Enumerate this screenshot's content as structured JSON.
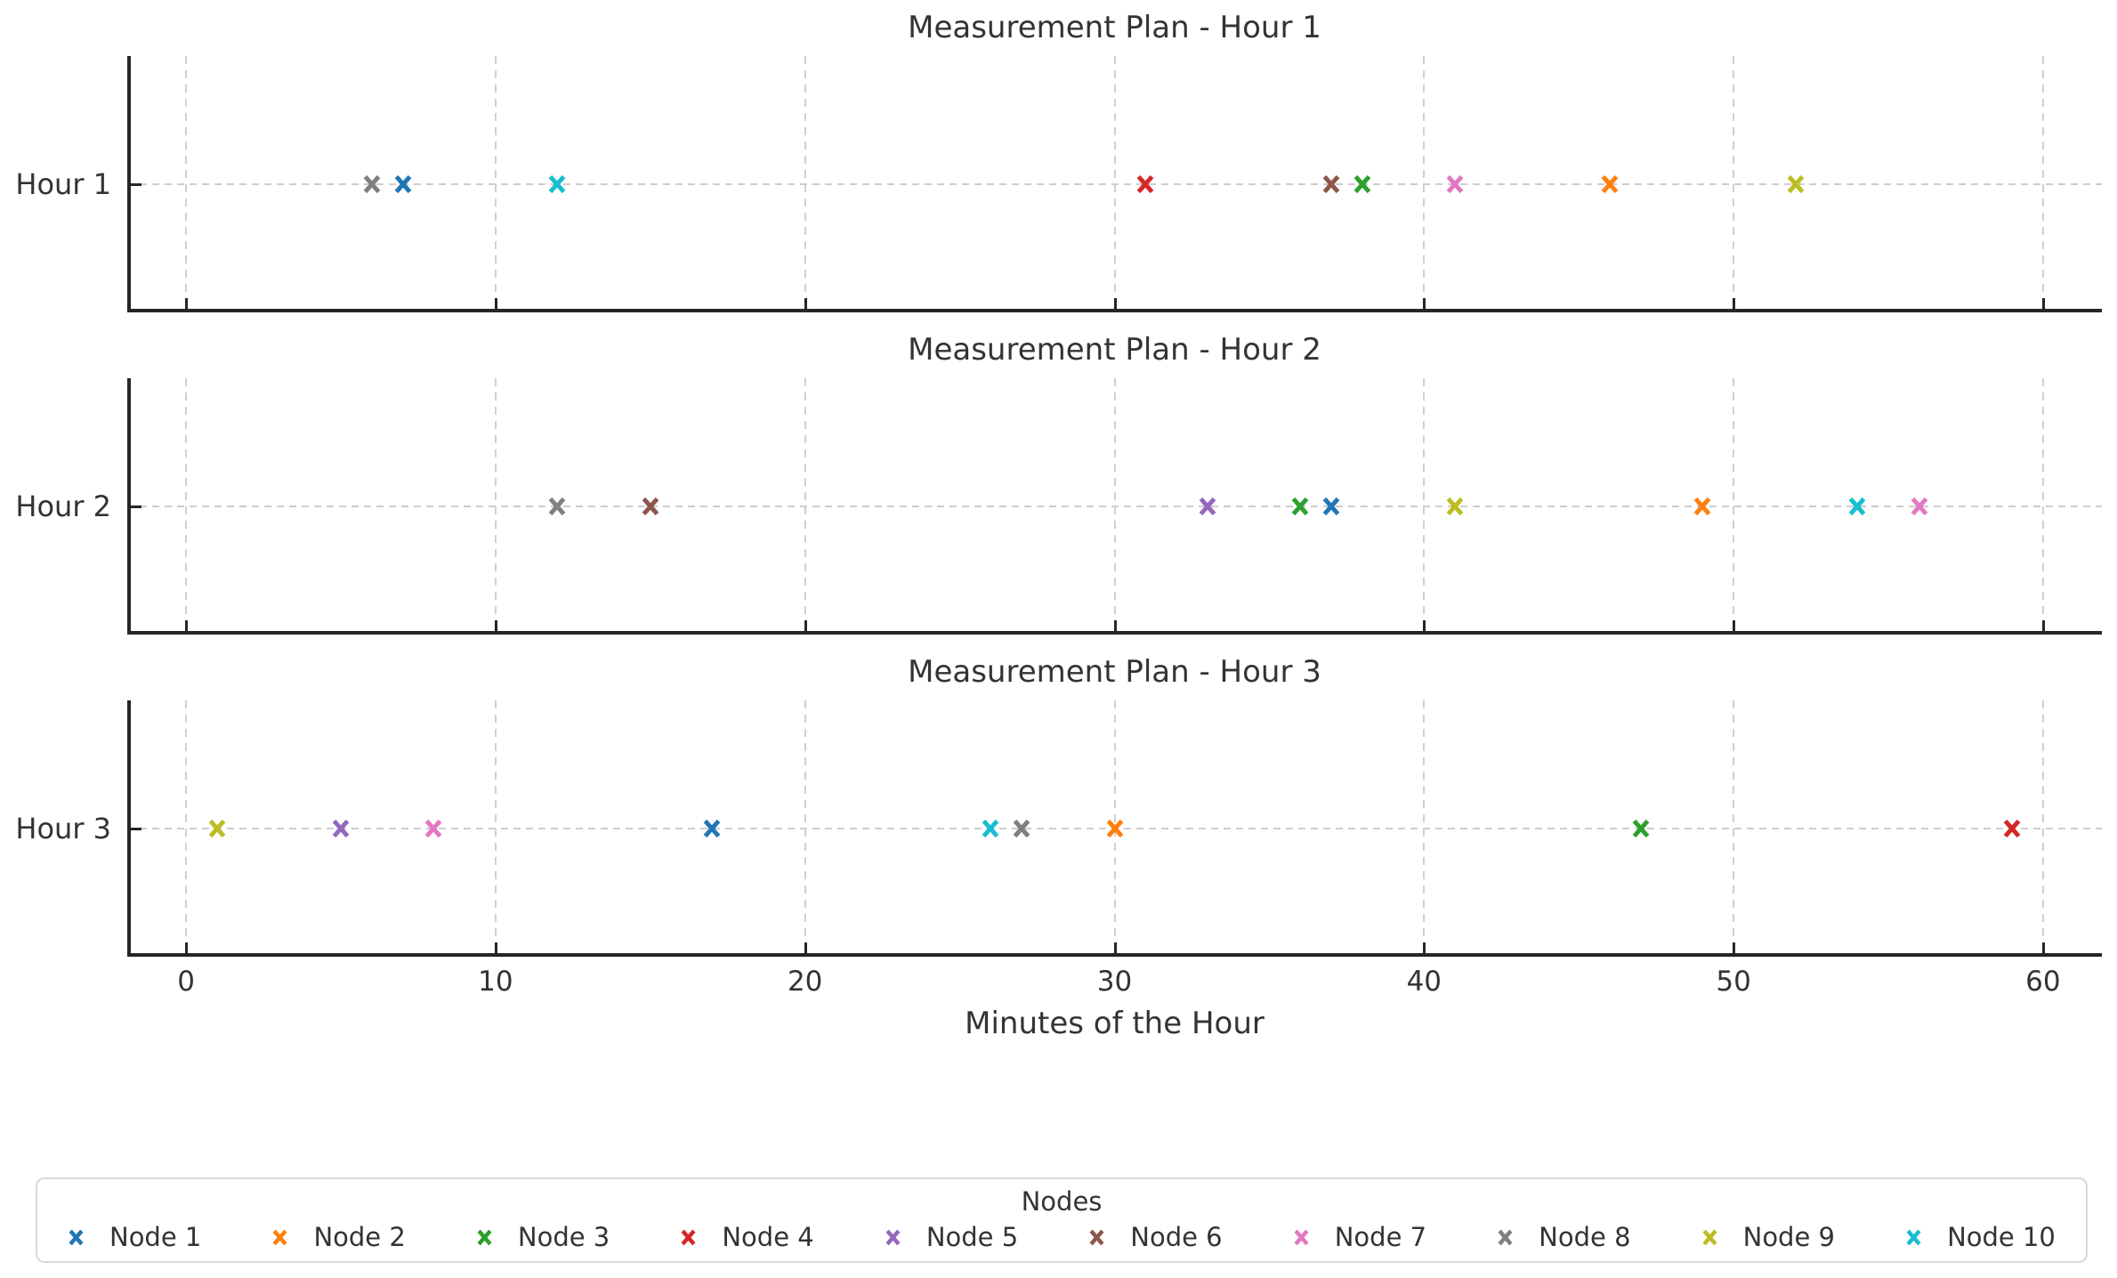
{
  "figure": {
    "background": "#ffffff",
    "text_color": "#333333",
    "spine_color": "#262626",
    "grid_color": "#cdcdcd"
  },
  "axis": {
    "xlabel": "Minutes of the Hour",
    "xticks": [
      0,
      10,
      20,
      30,
      40,
      50,
      60
    ],
    "xlim": [
      -1.9,
      61.9
    ]
  },
  "legend": {
    "title": "Nodes"
  },
  "nodes": [
    {
      "label": "Node 1",
      "color": "#1f77b4"
    },
    {
      "label": "Node 2",
      "color": "#ff7f0e"
    },
    {
      "label": "Node 3",
      "color": "#2ca02c"
    },
    {
      "label": "Node 4",
      "color": "#d62728"
    },
    {
      "label": "Node 5",
      "color": "#9467bd"
    },
    {
      "label": "Node 6",
      "color": "#8c564b"
    },
    {
      "label": "Node 7",
      "color": "#e377c2"
    },
    {
      "label": "Node 8",
      "color": "#7f7f7f"
    },
    {
      "label": "Node 9",
      "color": "#bcbd22"
    },
    {
      "label": "Node 10",
      "color": "#17becf"
    }
  ],
  "chart_data": [
    {
      "type": "scatter",
      "title": "Measurement Plan - Hour 1",
      "y_category": "Hour 1",
      "marker": "x",
      "grid": true,
      "points": [
        {
          "node": "Node 8",
          "minute": 6
        },
        {
          "node": "Node 1",
          "minute": 7
        },
        {
          "node": "Node 10",
          "minute": 12
        },
        {
          "node": "Node 4",
          "minute": 31
        },
        {
          "node": "Node 6",
          "minute": 37
        },
        {
          "node": "Node 3",
          "minute": 38
        },
        {
          "node": "Node 7",
          "minute": 41
        },
        {
          "node": "Node 2",
          "minute": 46
        },
        {
          "node": "Node 9",
          "minute": 52
        }
      ]
    },
    {
      "type": "scatter",
      "title": "Measurement Plan - Hour 2",
      "y_category": "Hour 2",
      "marker": "x",
      "grid": true,
      "points": [
        {
          "node": "Node 8",
          "minute": 12
        },
        {
          "node": "Node 6",
          "minute": 15
        },
        {
          "node": "Node 5",
          "minute": 33
        },
        {
          "node": "Node 3",
          "minute": 36
        },
        {
          "node": "Node 1",
          "minute": 37
        },
        {
          "node": "Node 9",
          "minute": 41
        },
        {
          "node": "Node 2",
          "minute": 49
        },
        {
          "node": "Node 10",
          "minute": 54
        },
        {
          "node": "Node 7",
          "minute": 56
        }
      ]
    },
    {
      "type": "scatter",
      "title": "Measurement Plan - Hour 3",
      "y_category": "Hour 3",
      "marker": "x",
      "grid": true,
      "points": [
        {
          "node": "Node 9",
          "minute": 1
        },
        {
          "node": "Node 5",
          "minute": 5
        },
        {
          "node": "Node 7",
          "minute": 8
        },
        {
          "node": "Node 1",
          "minute": 17
        },
        {
          "node": "Node 10",
          "minute": 26
        },
        {
          "node": "Node 8",
          "minute": 27
        },
        {
          "node": "Node 2",
          "minute": 30
        },
        {
          "node": "Node 3",
          "minute": 47
        },
        {
          "node": "Node 4",
          "minute": 59
        }
      ]
    }
  ]
}
